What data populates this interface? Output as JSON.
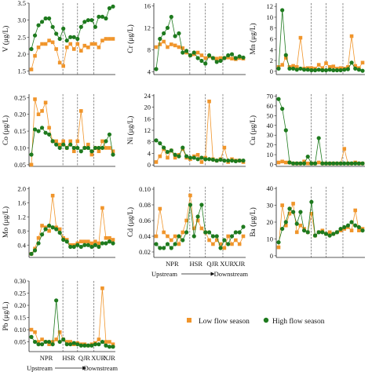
{
  "colors": {
    "low": "#F0952B",
    "high": "#1E7A1E",
    "axis": "#222222"
  },
  "legend": {
    "low": "Low flow season",
    "high": "High flow season"
  },
  "chart_data": [
    {
      "type": "line",
      "ylabel": "V (μg/L)",
      "ylim": [
        1.4,
        3.5
      ],
      "yticks": [
        "1.5",
        "2.0",
        "2.5",
        "3.0",
        "3.5"
      ],
      "ytickvals": [
        1.5,
        2.0,
        2.5,
        3.0,
        3.5
      ],
      "series": [
        {
          "name": "Low flow season",
          "values": [
            1.55,
            1.95,
            2.2,
            2.3,
            2.3,
            2.4,
            2.35,
            2.15,
            1.75,
            1.65,
            2.2,
            2.3,
            2.15,
            2.3,
            2.1,
            2.25,
            2.2,
            2.3,
            2.3,
            2.2,
            2.4,
            2.45,
            2.45,
            2.45
          ]
        },
        {
          "name": "High flow season",
          "values": [
            2.15,
            2.55,
            2.85,
            2.95,
            3.05,
            3.05,
            2.8,
            2.6,
            2.45,
            2.75,
            2.4,
            2.5,
            2.5,
            2.45,
            2.8,
            2.95,
            3.0,
            3.0,
            2.8,
            3.1,
            3.1,
            3.05,
            3.35,
            3.4
          ]
        }
      ]
    },
    {
      "type": "line",
      "ylabel": "Cr (μg/L)",
      "ylim": [
        3.5,
        16.5
      ],
      "yticks": [
        "4",
        "8",
        "12",
        "16"
      ],
      "ytickvals": [
        4,
        8,
        12,
        16
      ],
      "series": [
        {
          "name": "Low flow season",
          "values": [
            8.5,
            9.0,
            9.5,
            8.5,
            9.0,
            8.8,
            8.5,
            8.3,
            7.5,
            7.0,
            7.2,
            7.5,
            7.0,
            6.5,
            6.8,
            6.5,
            6.4,
            6.5,
            6.5,
            6.6,
            6.4,
            6.3,
            6.5,
            6.4
          ]
        },
        {
          "name": "High flow season",
          "values": [
            4.5,
            10.0,
            11.0,
            12.0,
            14.0,
            10.5,
            11.0,
            7.5,
            7.8,
            7.0,
            7.5,
            6.5,
            6.0,
            5.5,
            7.0,
            6.5,
            5.8,
            6.0,
            6.5,
            7.0,
            7.2,
            6.5,
            6.8,
            6.6
          ]
        }
      ]
    },
    {
      "type": "line",
      "ylabel": "Mn (μg/L)",
      "ylim": [
        -0.6,
        12.6
      ],
      "yticks": [
        "0",
        "2",
        "4",
        "6",
        "8",
        "10",
        "12"
      ],
      "ytickvals": [
        0,
        2,
        4,
        6,
        8,
        10,
        12
      ],
      "series": [
        {
          "name": "Low flow season",
          "values": [
            0.8,
            1.2,
            2.5,
            0.8,
            1.0,
            0.8,
            6.2,
            0.5,
            0.6,
            0.6,
            0.5,
            1.2,
            0.6,
            1.5,
            0.8,
            0.9,
            0.5,
            0.6,
            0.5,
            0.8,
            6.5,
            1.0,
            0.6,
            1.6
          ]
        },
        {
          "name": "High flow season",
          "values": [
            0.5,
            11.3,
            3.0,
            0.5,
            0.5,
            0.3,
            0.5,
            0.3,
            0.3,
            0.2,
            0.2,
            0.3,
            0.2,
            0.2,
            0.3,
            0.2,
            0.2,
            0.2,
            0.3,
            0.4,
            1.6,
            0.5,
            0.3,
            0.1
          ]
        }
      ]
    },
    {
      "type": "line",
      "ylabel": "Co (μg/L)",
      "ylim": [
        0.045,
        0.26
      ],
      "yticks": [
        "0.05",
        "0.10",
        "0.15",
        "0.20",
        "0.25"
      ],
      "ytickvals": [
        0.05,
        0.1,
        0.15,
        0.2,
        0.25
      ],
      "series": [
        {
          "name": "Low flow season",
          "values": [
            0.05,
            0.245,
            0.2,
            0.21,
            0.235,
            0.16,
            0.12,
            0.12,
            0.11,
            0.12,
            0.1,
            0.12,
            0.09,
            0.12,
            0.21,
            0.1,
            0.11,
            0.08,
            0.1,
            0.09,
            0.12,
            0.1,
            0.1,
            0.09
          ]
        },
        {
          "name": "High flow season",
          "values": [
            0.08,
            0.155,
            0.15,
            0.16,
            0.145,
            0.14,
            0.12,
            0.11,
            0.1,
            0.11,
            0.1,
            0.11,
            0.1,
            0.1,
            0.09,
            0.1,
            0.1,
            0.09,
            0.1,
            0.1,
            0.1,
            0.12,
            0.14,
            0.08
          ]
        }
      ]
    },
    {
      "type": "line",
      "ylabel": "Ni (μg/L)",
      "ylim": [
        -0.5,
        24.5
      ],
      "yticks": [
        "0",
        "4",
        "8",
        "12",
        "16",
        "20",
        "24"
      ],
      "ytickvals": [
        0,
        4,
        8,
        12,
        16,
        20,
        24
      ],
      "series": [
        {
          "name": "Low flow season",
          "values": [
            1.0,
            3.0,
            5.5,
            2.5,
            5.0,
            2.5,
            3.5,
            5.5,
            2.5,
            2.0,
            3.0,
            3.5,
            1.0,
            2.5,
            22.0,
            2.0,
            1.5,
            2.0,
            6.0,
            1.0,
            2.0,
            1.5,
            1.5,
            1.0
          ]
        },
        {
          "name": "High flow season",
          "values": [
            8.5,
            7.5,
            6.0,
            4.5,
            5.0,
            3.5,
            3.0,
            6.0,
            3.0,
            2.5,
            2.5,
            2.0,
            2.5,
            2.0,
            2.0,
            1.8,
            1.5,
            1.8,
            1.5,
            1.5,
            1.5,
            1.3,
            1.5,
            1.5
          ]
        }
      ]
    },
    {
      "type": "line",
      "ylabel": "Cu (μg/L)",
      "ylim": [
        -2,
        72
      ],
      "yticks": [
        "0",
        "10",
        "20",
        "30",
        "40",
        "50",
        "60",
        "70"
      ],
      "ytickvals": [
        0,
        10,
        20,
        30,
        40,
        50,
        60,
        70
      ],
      "series": [
        {
          "name": "Low flow season",
          "values": [
            2,
            3,
            2,
            2,
            1,
            1,
            1,
            3,
            1,
            1,
            1,
            2,
            1,
            1,
            1,
            1,
            1,
            1,
            16,
            1,
            1,
            2,
            1,
            1
          ]
        },
        {
          "name": "High flow season",
          "values": [
            67,
            57,
            35,
            2,
            1,
            1,
            1,
            1,
            8,
            1,
            1,
            27,
            1,
            1,
            1,
            1,
            1,
            1,
            1,
            1,
            1,
            1,
            1,
            1
          ]
        }
      ]
    },
    {
      "type": "line",
      "ylabel": "Mo (μg/L)",
      "ylim": [
        0.05,
        2.05
      ],
      "yticks": [
        "0.4",
        "0.8",
        "1.2",
        "1.6",
        "2.0"
      ],
      "ytickvals": [
        0.4,
        0.8,
        1.2,
        1.6,
        2.0
      ],
      "series": [
        {
          "name": "Low flow season",
          "values": [
            0.15,
            0.3,
            0.6,
            0.95,
            0.9,
            0.8,
            1.8,
            0.9,
            0.85,
            0.6,
            0.55,
            0.4,
            0.4,
            0.45,
            0.5,
            0.5,
            0.5,
            0.45,
            0.5,
            0.45,
            1.45,
            0.6,
            0.6,
            0.55
          ]
        },
        {
          "name": "High flow season",
          "values": [
            0.15,
            0.25,
            0.45,
            0.7,
            0.85,
            0.95,
            0.9,
            0.85,
            0.75,
            0.55,
            0.5,
            0.35,
            0.35,
            0.4,
            0.35,
            0.4,
            0.4,
            0.35,
            0.4,
            0.35,
            0.45,
            0.45,
            0.5,
            0.45
          ]
        }
      ]
    },
    {
      "type": "line",
      "ylabel": "Cd (μg/L)",
      "ylim": [
        0.013,
        0.103
      ],
      "yticks": [
        "0.02",
        "0.04",
        "0.06",
        "0.08",
        "0.10"
      ],
      "ytickvals": [
        0.02,
        0.04,
        0.06,
        0.08,
        0.1
      ],
      "series": [
        {
          "name": "Low flow season",
          "values": [
            0.04,
            0.075,
            0.045,
            0.04,
            0.035,
            0.04,
            0.03,
            0.045,
            0.06,
            0.092,
            0.05,
            0.06,
            0.05,
            0.045,
            0.035,
            0.03,
            0.035,
            0.03,
            0.025,
            0.04,
            0.03,
            0.035,
            0.03,
            0.04
          ]
        },
        {
          "name": "High flow season",
          "values": [
            0.03,
            0.025,
            0.025,
            0.03,
            0.025,
            0.03,
            0.04,
            0.035,
            0.045,
            0.08,
            0.04,
            0.065,
            0.08,
            0.045,
            0.045,
            0.04,
            0.04,
            0.025,
            0.035,
            0.03,
            0.04,
            0.045,
            0.045,
            0.052
          ]
        }
      ]
    },
    {
      "type": "line",
      "ylabel": "Ba (μg/L)",
      "ylim": [
        -1,
        41
      ],
      "yticks": [
        "0",
        "10",
        "20",
        "30",
        "40"
      ],
      "ytickvals": [
        0,
        10,
        20,
        30,
        40
      ],
      "series": [
        {
          "name": "Low flow season",
          "values": [
            5,
            30,
            18,
            25,
            31,
            14,
            18,
            16,
            14,
            25,
            12,
            14,
            15,
            13,
            14,
            13,
            14,
            15,
            16,
            17,
            15,
            27,
            15,
            16
          ]
        },
        {
          "name": "High flow season",
          "values": [
            8,
            16,
            20,
            28,
            26,
            19,
            26,
            15,
            14,
            32,
            12,
            14,
            14,
            13,
            12,
            13,
            14,
            16,
            17,
            18,
            20,
            18,
            17,
            15
          ]
        }
      ]
    },
    {
      "type": "line",
      "ylabel": "Pb (μg/L)",
      "ylim": [
        0.01,
        0.3
      ],
      "yticks": [
        "0.05",
        "0.10",
        "0.15",
        "0.20",
        "0.25",
        "0.30"
      ],
      "ytickvals": [
        0.05,
        0.1,
        0.15,
        0.2,
        0.25,
        0.3
      ],
      "series": [
        {
          "name": "Low flow season",
          "values": [
            0.1,
            0.09,
            0.05,
            0.06,
            0.05,
            0.04,
            0.05,
            0.06,
            0.09,
            0.06,
            0.05,
            0.05,
            0.04,
            0.045,
            0.04,
            0.04,
            0.035,
            0.04,
            0.045,
            0.06,
            0.27,
            0.05,
            0.05,
            0.04
          ]
        },
        {
          "name": "High flow season",
          "values": [
            0.07,
            0.05,
            0.04,
            0.04,
            0.05,
            0.05,
            0.04,
            0.22,
            0.05,
            0.06,
            0.04,
            0.04,
            0.045,
            0.04,
            0.035,
            0.035,
            0.035,
            0.035,
            0.04,
            0.04,
            0.05,
            0.035,
            0.03,
            0.03
          ]
        }
      ]
    }
  ],
  "regions": {
    "labels": [
      "NPR",
      "HSR",
      "QJR",
      "XUR",
      "XJR"
    ]
  },
  "flow_direction": {
    "upstream": "Upstream",
    "downstream": "Downstream"
  }
}
